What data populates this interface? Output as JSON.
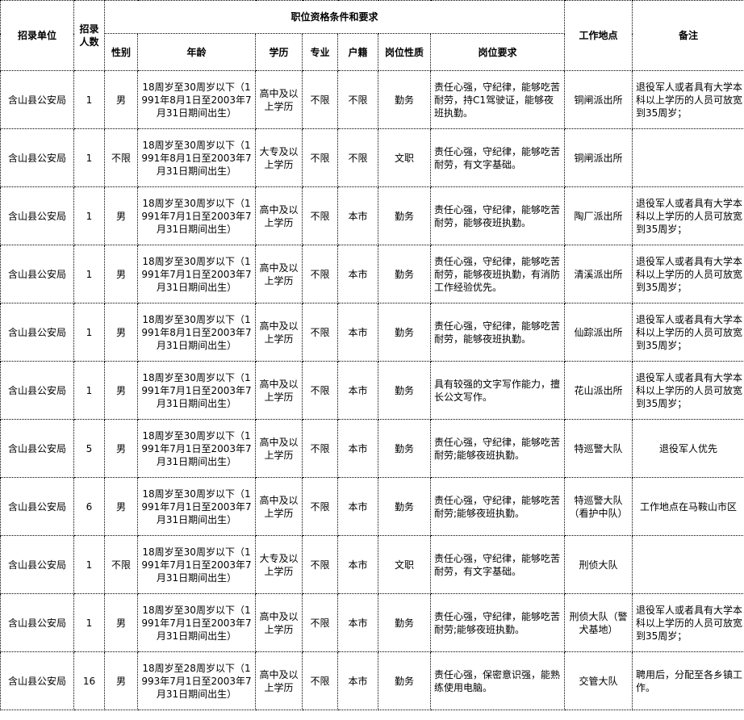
{
  "headers": {
    "unit": "招录单位",
    "count": "招录人数",
    "group": "职位资格条件和要求",
    "gender": "性别",
    "age": "年龄",
    "education": "学历",
    "major": "专业",
    "hukou": "户籍",
    "nature": "岗位性质",
    "requirements": "岗位要求",
    "location": "工作地点",
    "remarks": "备注"
  },
  "rows": [
    {
      "unit": "含山县公安局",
      "count": "1",
      "gender": "男",
      "age": "18周岁至30周岁以下（1991年8月1日至2003年7月31日期间出生）",
      "education": "高中及以上学历",
      "major": "不限",
      "hukou": "不限",
      "nature": "勤务",
      "requirements": "责任心强，守纪律，能够吃苦耐劳，持C1驾驶证，能够夜班执勤。",
      "location": "铜闸派出所",
      "remarks": "退役军人或者具有大学本科以上学历的人员可放宽到35周岁；"
    },
    {
      "unit": "含山县公安局",
      "count": "1",
      "gender": "不限",
      "age": "18周岁至30周岁以下（1991年8月1日至2003年7月31日期间出生）",
      "education": "大专及以上学历",
      "major": "不限",
      "hukou": "不限",
      "nature": "文职",
      "requirements": "责任心强，守纪律，能够吃苦耐劳，有文字基础。",
      "location": "铜闸派出所",
      "remarks": ""
    },
    {
      "unit": "含山县公安局",
      "count": "1",
      "gender": "男",
      "age": "18周岁至30周岁以下（1991年7月1日至2003年7月31日期间出生）",
      "education": "高中及以上学历",
      "major": "不限",
      "hukou": "本市",
      "nature": "勤务",
      "requirements": "责任心强，守纪律，能够吃苦耐劳，能够夜班执勤。",
      "location": "陶厂派出所",
      "remarks": "退役军人或者具有大学本科以上学历的人员可放宽到35周岁；"
    },
    {
      "unit": "含山县公安局",
      "count": "1",
      "gender": "男",
      "age": "18周岁至30周岁以下（1991年7月1日至2003年7月31日期间出生）",
      "education": "高中及以上学历",
      "major": "不限",
      "hukou": "本市",
      "nature": "勤务",
      "requirements": "责任心强，守纪律，能够吃苦耐劳，能够夜班执勤，有消防工作经验优先。",
      "location": "清溪派出所",
      "remarks": "退役军人或者具有大学本科以上学历的人员可放宽到35周岁；"
    },
    {
      "unit": "含山县公安局",
      "count": "1",
      "gender": "男",
      "age": "18周岁至30周岁以下（1991年8月1日至2003年7月31日期间出生）",
      "education": "高中及以上学历",
      "major": "不限",
      "hukou": "本市",
      "nature": "勤务",
      "requirements": "责任心强，守纪律，能够吃苦耐劳，能够夜班执勤。",
      "location": "仙踪派出所",
      "remarks": "退役军人或者具有大学本科以上学历的人员可放宽到35周岁；"
    },
    {
      "unit": "含山县公安局",
      "count": "1",
      "gender": "男",
      "age": "18周岁至30周岁以下（1991年7月1日至2003年7月31日期间出生）",
      "education": "高中及以上学历",
      "major": "不限",
      "hukou": "本市",
      "nature": "勤务",
      "requirements": "具有较强的文字写作能力，擅长公文写作。",
      "location": "花山派出所",
      "remarks": "退役军人或者具有大学本科以上学历的人员可放宽到35周岁；"
    },
    {
      "unit": "含山县公安局",
      "count": "5",
      "gender": "男",
      "age": "18周岁至30周岁以下（1991年7月1日至2003年7月31日期间出生）",
      "education": "高中及以上学历",
      "major": "不限",
      "hukou": "本市",
      "nature": "勤务",
      "requirements": "责任心强，守纪律，能够吃苦耐劳;能够夜班执勤。",
      "location": "特巡警大队",
      "remarks": "退役军人优先"
    },
    {
      "unit": "含山县公安局",
      "count": "6",
      "gender": "男",
      "age": "18周岁至30周岁以下（1991年7月1日至2003年7月31日期间出生）",
      "education": "高中及以上学历",
      "major": "不限",
      "hukou": "本市",
      "nature": "勤务",
      "requirements": "责任心强，守纪律，能够吃苦耐劳;能够夜班执勤。",
      "location": "特巡警大队（看护中队）",
      "remarks": "工作地点在马鞍山市区"
    },
    {
      "unit": "含山县公安局",
      "count": "1",
      "gender": "不限",
      "age": "18周岁至30周岁以下（1991年7月1日至2003年7月31日期间出生）",
      "education": "大专及以上学历",
      "major": "不限",
      "hukou": "本市",
      "nature": "文职",
      "requirements": "责任心强，守纪律，能够吃苦耐劳，有文字基础。",
      "location": "刑侦大队",
      "remarks": ""
    },
    {
      "unit": "含山县公安局",
      "count": "1",
      "gender": "男",
      "age": "18周岁至30周岁以下（1991年7月1日至2003年7月31日期间出生）",
      "education": "高中及以上学历",
      "major": "不限",
      "hukou": "本市",
      "nature": "勤务",
      "requirements": "责任心强，守纪律，能够吃苦耐劳;能够夜班执勤。",
      "location": "刑侦大队（警犬基地）",
      "remarks": "退役军人或者具有大学本科以上学历的人员可放宽到35周岁；"
    },
    {
      "unit": "含山县公安局",
      "count": "16",
      "gender": "男",
      "age": "18周岁至28周岁以下（1993年7月1日至2003年7月31日期间出生）",
      "education": "高中及以上学历",
      "major": "不限",
      "hukou": "本市",
      "nature": "勤务",
      "requirements": "责任心强，保密意识强，能熟练使用电脑。",
      "location": "交管大队",
      "remarks": "聘用后，分配至各乡镇工作。"
    }
  ]
}
